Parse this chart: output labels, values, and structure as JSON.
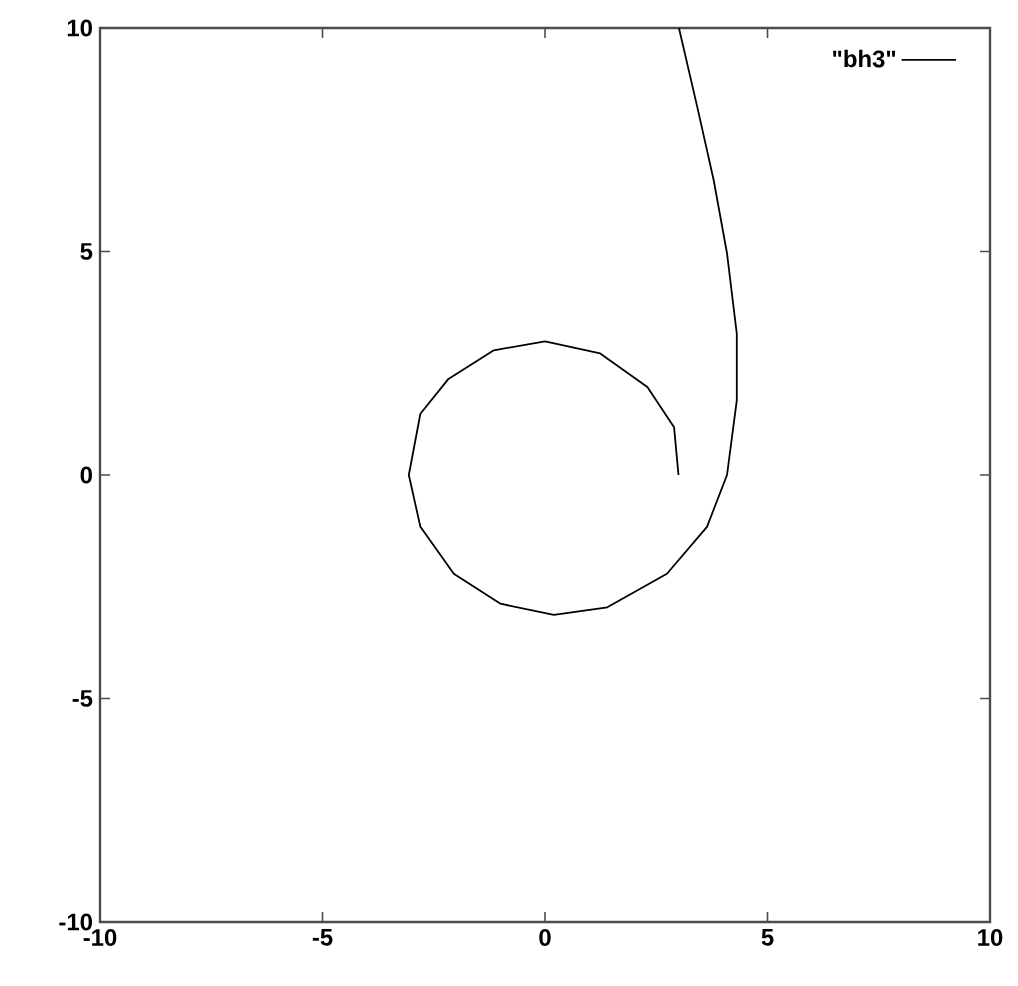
{
  "chart_data": {
    "type": "line",
    "xlim": [
      -10,
      10
    ],
    "ylim": [
      -10,
      10
    ],
    "xticks": [
      -10,
      -5,
      0,
      5,
      10
    ],
    "yticks": [
      -10,
      -5,
      0,
      5,
      10
    ],
    "grid": false,
    "legend": "top right",
    "marker": "none",
    "line_style": "solid",
    "series": [
      {
        "name": "\"bh3\"",
        "color": "#000000",
        "x": [
          3.0,
          2.9,
          2.3,
          1.24,
          0,
          -1.15,
          -2.17,
          -2.8,
          -3.06,
          -2.8,
          -2.05,
          -1.0,
          0.2,
          1.4,
          2.74,
          3.64,
          4.09,
          4.31,
          4.31,
          4.09,
          3.79,
          3.42,
          3.01
        ],
        "values": [
          0,
          1.07,
          1.97,
          2.72,
          2.99,
          2.79,
          2.15,
          1.37,
          0,
          -1.16,
          -2.21,
          -2.88,
          -3.13,
          -2.96,
          -2.21,
          -1.16,
          0,
          1.67,
          3.16,
          4.96,
          6.6,
          8.24,
          10
        ]
      }
    ]
  }
}
